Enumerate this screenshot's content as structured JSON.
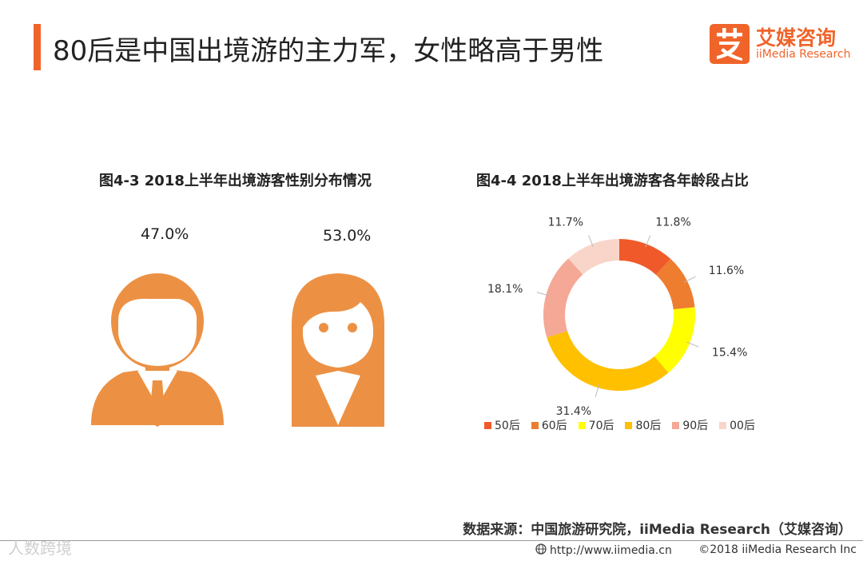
{
  "header": {
    "title": "80后是中国出境游的主力军，女性略高于男性",
    "logo_mark": "艾",
    "logo_cn": "艾媒咨询",
    "logo_en": "iiMedia Research"
  },
  "colors": {
    "accent": "#f0642a",
    "person": "#ec9144"
  },
  "chart_data": [
    {
      "type": "pictogram",
      "title": "图4-3 2018上半年出境游客性别分布情况",
      "categories": [
        "male",
        "female"
      ],
      "labels": [
        "47.0%",
        "53.0%"
      ],
      "values": [
        47.0,
        53.0
      ],
      "icons": [
        "male-person-icon",
        "female-person-icon"
      ]
    },
    {
      "type": "pie",
      "variant": "donut",
      "title": "图4-4 2018上半年出境游客各年龄段占比",
      "categories": [
        "50后",
        "60后",
        "70后",
        "80后",
        "90后",
        "00后"
      ],
      "values": [
        11.8,
        11.6,
        15.4,
        31.4,
        18.1,
        11.7
      ],
      "labels": [
        "11.8%",
        "11.6%",
        "15.4%",
        "31.4%",
        "18.1%",
        "11.7%"
      ],
      "colors": [
        "#f05a2a",
        "#ee7d30",
        "#ffff00",
        "#ffc000",
        "#f4a895",
        "#f9d5c9"
      ],
      "legend": "bottom"
    }
  ],
  "footer": {
    "source": "数据来源：中国旅游研究院，iiMedia Research（艾媒咨询）",
    "watermark": "人数跨境",
    "url": "http://www.iimedia.cn",
    "copyright": "©2018  iiMedia Research  Inc"
  }
}
